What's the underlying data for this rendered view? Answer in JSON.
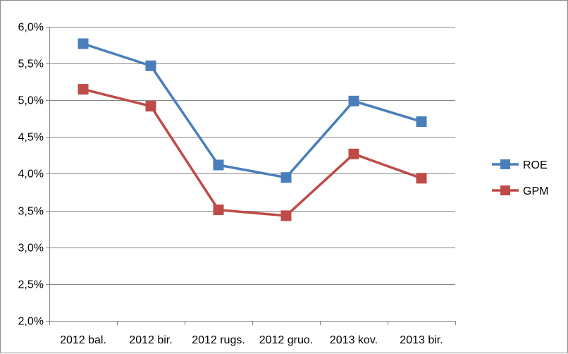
{
  "chart_data": {
    "type": "line",
    "title": "",
    "xlabel": "",
    "ylabel": "",
    "categories": [
      "2012 bal.",
      "2012 bir.",
      "2012 rugs.",
      "2012 gruo.",
      "2013 kov.",
      "2013 bir."
    ],
    "ylim": [
      0.02,
      0.06
    ],
    "y_ticks": [
      0.02,
      0.025,
      0.03,
      0.035,
      0.04,
      0.045,
      0.05,
      0.055,
      0.06
    ],
    "y_tick_labels": [
      "2,0%",
      "2,5%",
      "3,0%",
      "3,5%",
      "4,0%",
      "4,5%",
      "5,0%",
      "5,5%",
      "6,0%"
    ],
    "grid": true,
    "legend_position": "right",
    "series": [
      {
        "name": "ROE",
        "color": "#4a7ebb",
        "marker": "square",
        "values": [
          0.0577,
          0.0547,
          0.0412,
          0.0395,
          0.0499,
          0.0471
        ]
      },
      {
        "name": "GPM",
        "color": "#be4b48",
        "marker": "square",
        "values": [
          0.0515,
          0.0492,
          0.0351,
          0.0343,
          0.0427,
          0.0394
        ]
      }
    ]
  }
}
